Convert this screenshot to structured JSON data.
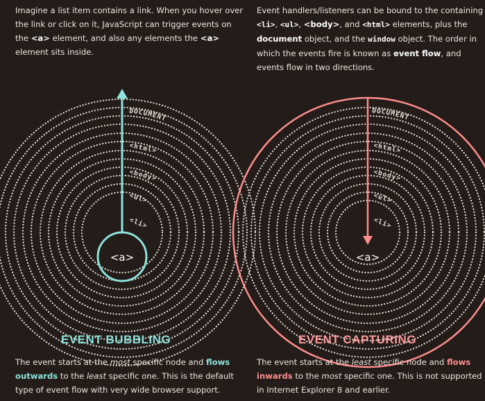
{
  "intro_left": {
    "t1": "Imagine a list item contains a link. When you hover over the link or click on it, JavaScript can trigger events on the ",
    "a_tag": "<a>",
    "t2": " element, and also any elements the ",
    "a_tag2": "<a>",
    "t3": " element sits inside."
  },
  "intro_right": {
    "t1": "Event handlers/listeners can be bound to the containing ",
    "li": "<li>",
    "c1": ", ",
    "ul": "<ul>",
    "c2": ", ",
    "body": "<body>",
    "c3": ", and ",
    "html": "<html>",
    "t2": " elements, plus the ",
    "document": "document",
    "t3": " object, and the ",
    "window": "window",
    "t4": " object. The order in which the events fire is known as ",
    "event_flow": "event flow",
    "t5": ", and events flow in two directions."
  },
  "bubbling": {
    "heading": "EVENT BUBBLING",
    "desc": {
      "t1": "The event starts at the ",
      "most": "most",
      "t2": " specific node and ",
      "flows": "flows outwards",
      "t3": " to the ",
      "least": "least",
      "t4": " specific one. This is the default type of event flow with very wide browser support."
    }
  },
  "capturing": {
    "heading": "EVENT CAPTURING",
    "desc": {
      "t1": "The event starts at the ",
      "least": "least",
      "t2": " specific node and ",
      "flows": "flows inwards",
      "t3": " to the ",
      "most": "most",
      "t4": " specific one. This is not supported in Internet Explorer 8 and earlier."
    }
  },
  "rings": {
    "document": "DOCUMENT",
    "html": "<html>",
    "body": "<body>",
    "ul": "<ul>",
    "li": "<li>",
    "center": "<a>"
  },
  "colors": {
    "background": "#231c19",
    "bubbling_accent": "#8fe3dd",
    "capturing_accent": "#ff8f8f",
    "ring_dots": "#e9e3dc"
  }
}
